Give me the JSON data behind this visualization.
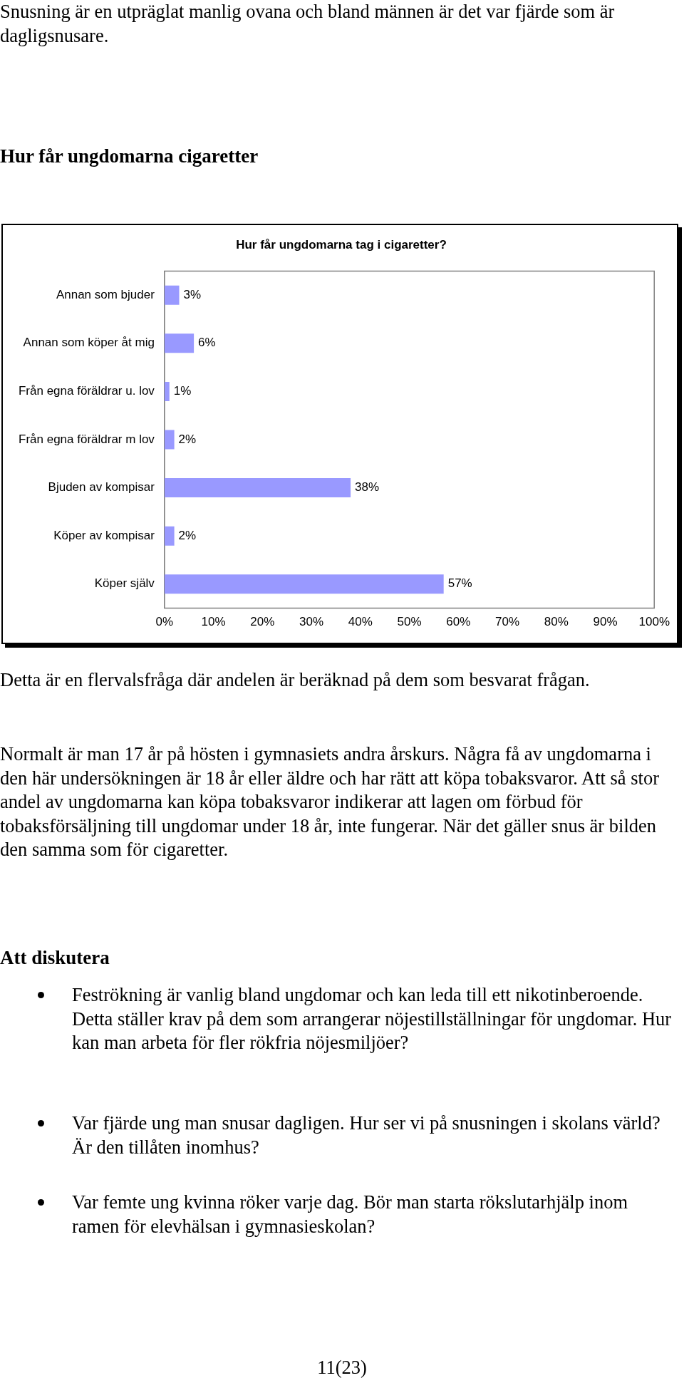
{
  "chart_data": {
    "type": "bar",
    "orientation": "horizontal",
    "title": "Hur får ungdomarna tag i cigaretter?",
    "categories": [
      "Annan som bjuder",
      "Annan som köper åt mig",
      "Från egna föräldrar u. lov",
      "Från egna föräldrar m lov",
      "Bjuden av kompisar",
      "Köper av kompisar",
      "Köper själv"
    ],
    "values": [
      3,
      6,
      1,
      2,
      38,
      2,
      57
    ],
    "value_labels": [
      "3%",
      "6%",
      "1%",
      "2%",
      "38%",
      "2%",
      "57%"
    ],
    "color": "#9999ff",
    "xlim": [
      0,
      100
    ],
    "xticks": [
      {
        "value": 0,
        "label": "0%"
      },
      {
        "value": 10,
        "label": "10%"
      },
      {
        "value": 20,
        "label": "20%"
      },
      {
        "value": 30,
        "label": "30%"
      },
      {
        "value": 40,
        "label": "40%"
      },
      {
        "value": 50,
        "label": "50%"
      },
      {
        "value": 60,
        "label": "60%"
      },
      {
        "value": 70,
        "label": "70%"
      },
      {
        "value": 80,
        "label": "80%"
      },
      {
        "value": 90,
        "label": "90%"
      },
      {
        "value": 100,
        "label": "100%"
      }
    ],
    "grid": false,
    "legend": false,
    "annotations": [
      "Snusning är en utpräglat manlig ovana och bland männen är det var fjärde som är dagligsnusare.",
      "Hur får ungdomarna cigaretter",
      "Detta är en flervalsfråga där andelen är beräknad på dem som besvarat frågan.",
      "Normalt är man 17 år på hösten i gymnasiets andra årskurs. Några få av ungdomarna i den här undersökningen är 18 år eller äldre och har rätt att köpa tobaksvaror. Att så stor andel av ungdomarna kan köpa tobaksvaror indikerar att lagen om förbud för tobaksförsäljning till ungdomar under 18 år, inte fungerar. När det gäller snus är bilden den samma som för cigaretter.",
      "Att diskutera",
      "Feströkning är vanlig bland ungdomar och kan leda till ett nikotinberoende. Detta ställer krav på dem som arrangerar nöjestillställningar för ungdomar. Hur kan man arbeta för fler rökfria nöjesmiljöer?",
      "Var fjärde ung man snusar dagligen. Hur ser vi på snusningen i skolans värld? Är den tillåten inomhus?",
      "Var femte ung kvinna röker varje dag. Bör man starta rökslutarhjälp inom ramen för elevhälsan i gymnasieskolan?",
      "11(23)"
    ]
  }
}
